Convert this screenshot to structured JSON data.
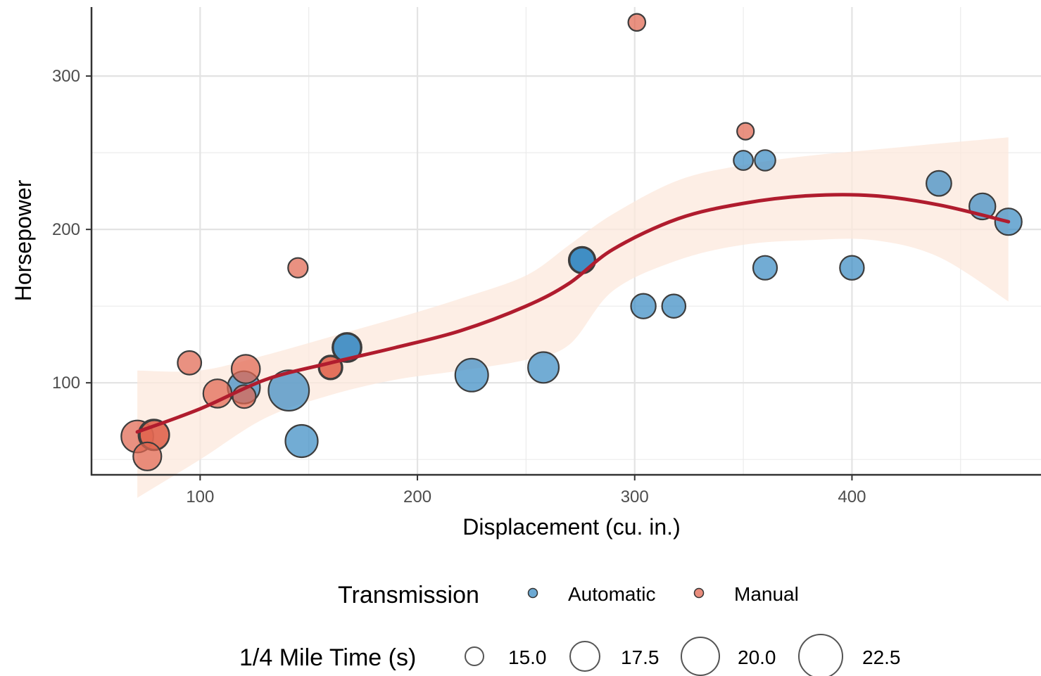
{
  "chart_data": {
    "type": "scatter",
    "xlabel": "Displacement (cu. in.)",
    "ylabel": "Horsepower",
    "xlim": [
      50,
      487
    ],
    "ylim": [
      40,
      345
    ],
    "x_ticks": [
      100,
      200,
      300,
      400
    ],
    "y_ticks": [
      100,
      200,
      300
    ],
    "grid": true,
    "legend_position": "bottom",
    "colors": {
      "Automatic": "#3b8cc4",
      "Manual": "#e06650",
      "smooth_line": "#b01c2e",
      "ribbon": "#fce8dc"
    },
    "series": [
      {
        "name": "Automatic",
        "points": [
          {
            "x": 258,
            "y": 110,
            "size": 19.44
          },
          {
            "x": 360,
            "y": 175,
            "size": 17.02
          },
          {
            "x": 225,
            "y": 105,
            "size": 20.22
          },
          {
            "x": 360,
            "y": 245,
            "size": 15.84
          },
          {
            "x": 146.7,
            "y": 62,
            "size": 20.0
          },
          {
            "x": 140.8,
            "y": 95,
            "size": 22.9
          },
          {
            "x": 167.6,
            "y": 123,
            "size": 18.3
          },
          {
            "x": 167.6,
            "y": 123,
            "size": 18.9
          },
          {
            "x": 275.8,
            "y": 180,
            "size": 17.4
          },
          {
            "x": 275.8,
            "y": 180,
            "size": 17.6
          },
          {
            "x": 275.8,
            "y": 180,
            "size": 18.0
          },
          {
            "x": 472,
            "y": 205,
            "size": 17.98
          },
          {
            "x": 460,
            "y": 215,
            "size": 17.82
          },
          {
            "x": 440,
            "y": 230,
            "size": 17.42
          },
          {
            "x": 120.1,
            "y": 97,
            "size": 20.01
          },
          {
            "x": 318,
            "y": 150,
            "size": 16.87
          },
          {
            "x": 304,
            "y": 150,
            "size": 17.3
          },
          {
            "x": 350,
            "y": 245,
            "size": 15.41
          },
          {
            "x": 400,
            "y": 175,
            "size": 17.05
          }
        ]
      },
      {
        "name": "Manual",
        "points": [
          {
            "x": 160,
            "y": 110,
            "size": 16.46
          },
          {
            "x": 160,
            "y": 110,
            "size": 17.02
          },
          {
            "x": 108,
            "y": 93,
            "size": 18.61
          },
          {
            "x": 78.7,
            "y": 66,
            "size": 19.47
          },
          {
            "x": 75.7,
            "y": 52,
            "size": 18.52
          },
          {
            "x": 71.1,
            "y": 65,
            "size": 19.9
          },
          {
            "x": 79,
            "y": 66,
            "size": 18.9
          },
          {
            "x": 120.3,
            "y": 91,
            "size": 16.7
          },
          {
            "x": 95.1,
            "y": 113,
            "size": 16.9
          },
          {
            "x": 351,
            "y": 264,
            "size": 14.5
          },
          {
            "x": 145,
            "y": 175,
            "size": 15.5
          },
          {
            "x": 301,
            "y": 335,
            "size": 14.6
          },
          {
            "x": 121,
            "y": 109,
            "size": 18.6
          }
        ]
      }
    ],
    "smooth": {
      "x": [
        71.1,
        100,
        130,
        160,
        190,
        220,
        250,
        270,
        290,
        320,
        350,
        380,
        410,
        440,
        472
      ],
      "y": [
        68,
        83,
        102,
        113,
        123,
        134,
        150,
        165,
        187,
        207,
        217,
        222,
        222,
        216,
        205
      ],
      "lower": [
        25,
        50,
        77,
        92,
        102,
        108,
        115,
        125,
        160,
        180,
        190,
        193,
        193,
        182,
        153
      ],
      "upper": [
        108,
        108,
        118,
        130,
        142,
        155,
        170,
        190,
        210,
        232,
        242,
        248,
        252,
        256,
        260
      ]
    },
    "legends": {
      "color": {
        "title": "Transmission",
        "labels": [
          "Automatic",
          "Manual"
        ]
      },
      "size": {
        "title": "1/4 Mile Time (s)",
        "labels": [
          "15.0",
          "17.5",
          "20.0",
          "22.5"
        ],
        "values": [
          15.0,
          17.5,
          20.0,
          22.5
        ]
      }
    }
  }
}
